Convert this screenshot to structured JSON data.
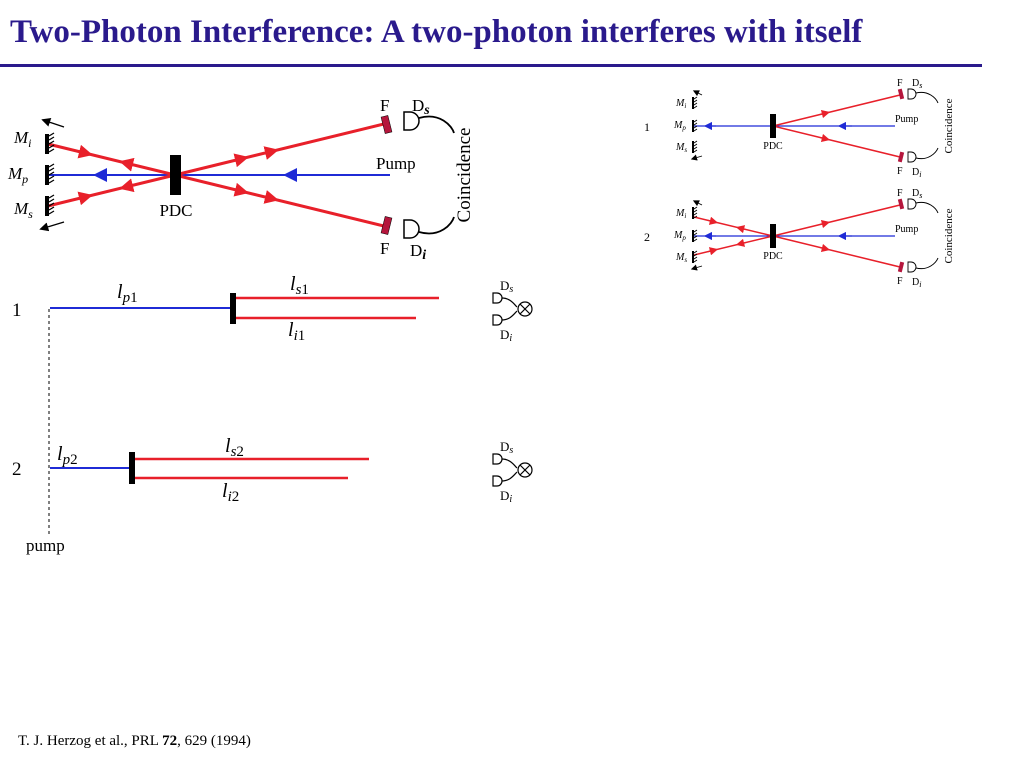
{
  "slide": {
    "title": "Two-Photon Interference: A two-photon interferes with itself",
    "citation": {
      "prefix": "T. J. Herzog et al., PRL ",
      "volume": "72",
      "suffix": ", 629 (1994)"
    }
  },
  "setup": {
    "mirror_i": "M",
    "mirror_p": "M",
    "mirror_s": "M",
    "sub_i": "i",
    "sub_p": "p",
    "sub_s": "s",
    "crystal": "PDC",
    "pump": "Pump",
    "filter": "F",
    "detector": "D",
    "sub_det_s": "s",
    "sub_det_i": "i",
    "coincidence": "Coincidence"
  },
  "paths": {
    "path1_number": "1",
    "path2_number": "2",
    "l": "l",
    "sub_p": "p",
    "sub_s": "s",
    "sub_i": "i",
    "idx1": "1",
    "idx2": "2",
    "pump_label": "pump",
    "detector": "D",
    "det_sub_s": "s",
    "det_sub_i": "i"
  },
  "colors": {
    "pump_beam": "#1f2bd6",
    "photon_beam": "#e8202a",
    "filter": "#b5163c",
    "title": "#2a1a8c"
  },
  "icons": {
    "mirror": "hatched-mirror",
    "crystal": "black-bar",
    "detector": "d-shaped-detector",
    "coincidence": "circle-cross"
  }
}
